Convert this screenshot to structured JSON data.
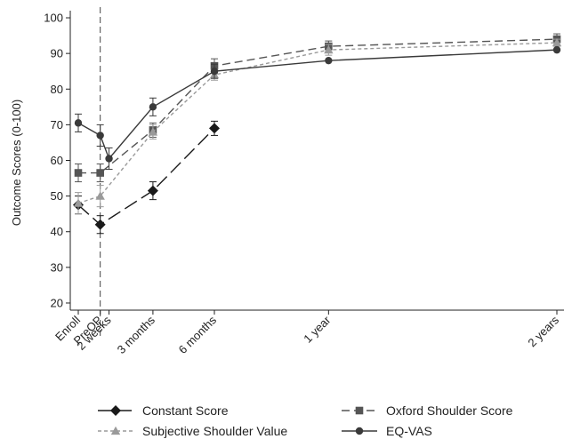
{
  "chart_data": {
    "type": "line",
    "title": "",
    "xlabel": "",
    "ylabel": "Outcome Scores (0-100)",
    "ylim": [
      18,
      102
    ],
    "yticks": [
      20,
      30,
      40,
      50,
      60,
      70,
      80,
      90,
      100
    ],
    "grid": false,
    "legend_position": "bottom",
    "categories": [
      "Enroll",
      "PreOP",
      "2 weeks",
      "3 months",
      "6 months",
      "1 year",
      "2 years"
    ],
    "category_x_weeks": [
      -5,
      0,
      2,
      12,
      26,
      52,
      104
    ],
    "vertical_reference_line": {
      "at": "PreOP",
      "style": "dashed"
    },
    "series": [
      {
        "name": "Constant Score",
        "marker": "diamond",
        "dash": "long-dash",
        "color": "#1a1a1a",
        "values": [
          47.5,
          42,
          null,
          51.5,
          69,
          null,
          null
        ],
        "errors": [
          2.5,
          2.5,
          null,
          2.5,
          2,
          null,
          null
        ]
      },
      {
        "name": "Oxford Shoulder Score",
        "marker": "square",
        "dash": "dash",
        "color": "#555555",
        "values": [
          56.5,
          56.5,
          null,
          68.5,
          86.5,
          92,
          94
        ],
        "errors": [
          2.5,
          2.5,
          null,
          2,
          2,
          1.5,
          1.5
        ]
      },
      {
        "name": "Subjective Shoulder Value",
        "marker": "triangle",
        "dash": "short-dash",
        "color": "#9a9a9a",
        "values": [
          48,
          50,
          null,
          68,
          84,
          91,
          93
        ],
        "errors": [
          3,
          3,
          null,
          2,
          1.5,
          1.5,
          1
        ]
      },
      {
        "name": "EQ-VAS",
        "marker": "circle",
        "dash": "solid",
        "color": "#3a3a3a",
        "values": [
          70.5,
          67,
          60.5,
          75,
          85,
          88,
          91
        ],
        "errors": [
          2.5,
          3,
          3,
          2.5,
          2,
          null,
          null
        ]
      }
    ]
  }
}
